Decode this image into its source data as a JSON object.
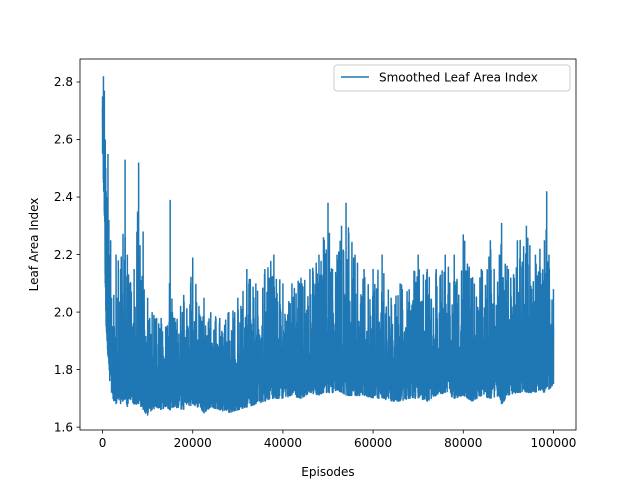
{
  "chart_data": {
    "type": "line",
    "title": "",
    "xlabel": "Episodes",
    "ylabel": "Leaf Area Index",
    "xlim": [
      -5000,
      105000
    ],
    "ylim": [
      1.59,
      2.88
    ],
    "xticks": [
      0,
      20000,
      40000,
      60000,
      80000,
      100000
    ],
    "xtick_labels": [
      "0",
      "20000",
      "40000",
      "60000",
      "80000",
      "100000"
    ],
    "yticks": [
      1.6,
      1.8,
      2.0,
      2.2,
      2.4,
      2.6,
      2.8
    ],
    "ytick_labels": [
      "1.6",
      "1.8",
      "2.0",
      "2.2",
      "2.4",
      "2.6",
      "2.8"
    ],
    "grid": false,
    "legend_position": "upper right",
    "series": [
      {
        "name": "Smoothed Leaf Area Index",
        "color": "#1f77b4",
        "x": [
          0,
          200,
          400,
          600,
          800,
          1000,
          1200,
          1400,
          1600,
          1800,
          2000,
          2500,
          3000,
          3500,
          4000,
          5000,
          5500,
          6000,
          7000,
          8000,
          8500,
          9000,
          10000,
          11000,
          12000,
          13000,
          14000,
          15000,
          15500,
          16000,
          18000,
          20000,
          22000,
          22500,
          24000,
          26000,
          28000,
          30000,
          32000,
          34000,
          36000,
          38000,
          40000,
          42000,
          44000,
          46000,
          48000,
          49000,
          50000,
          51000,
          52000,
          53000,
          54000,
          56000,
          58000,
          60000,
          62000,
          64000,
          66000,
          68000,
          70000,
          72000,
          74000,
          76000,
          78000,
          80000,
          82000,
          84000,
          86000,
          88000,
          88500,
          90000,
          92000,
          94000,
          96000,
          97000,
          98000,
          98500,
          99000,
          100000
        ],
        "upper": [
          2.75,
          2.82,
          2.77,
          2.6,
          2.42,
          2.4,
          2.55,
          2.32,
          2.2,
          2.25,
          2.05,
          2.06,
          2.2,
          2.18,
          2.15,
          2.53,
          2.2,
          2.1,
          2.15,
          2.52,
          2.1,
          2.28,
          2.05,
          2.0,
          1.98,
          1.98,
          1.95,
          2.39,
          2.0,
          1.98,
          2.06,
          2.19,
          1.97,
          2.05,
          2.0,
          1.98,
          2.0,
          2.05,
          2.15,
          2.1,
          2.15,
          2.2,
          2.1,
          2.1,
          2.12,
          2.15,
          2.2,
          2.26,
          2.38,
          2.15,
          2.2,
          2.3,
          2.38,
          2.2,
          2.15,
          2.15,
          2.2,
          2.05,
          2.1,
          2.08,
          2.2,
          2.15,
          2.15,
          2.2,
          2.2,
          2.27,
          2.12,
          2.15,
          2.25,
          2.2,
          2.31,
          2.15,
          2.25,
          2.3,
          2.2,
          2.22,
          2.25,
          2.42,
          2.2,
          2.08
        ],
        "lower": [
          2.55,
          2.45,
          2.35,
          2.1,
          1.95,
          1.9,
          1.85,
          1.82,
          1.76,
          1.78,
          1.72,
          1.69,
          1.68,
          1.7,
          1.68,
          1.7,
          1.67,
          1.7,
          1.68,
          1.68,
          1.67,
          1.66,
          1.64,
          1.66,
          1.67,
          1.66,
          1.67,
          1.66,
          1.67,
          1.67,
          1.66,
          1.68,
          1.66,
          1.65,
          1.67,
          1.66,
          1.65,
          1.66,
          1.67,
          1.68,
          1.69,
          1.7,
          1.7,
          1.71,
          1.7,
          1.72,
          1.71,
          1.72,
          1.72,
          1.72,
          1.73,
          1.72,
          1.71,
          1.71,
          1.71,
          1.7,
          1.7,
          1.69,
          1.69,
          1.7,
          1.7,
          1.69,
          1.71,
          1.72,
          1.7,
          1.71,
          1.69,
          1.71,
          1.7,
          1.71,
          1.68,
          1.71,
          1.72,
          1.72,
          1.72,
          1.73,
          1.72,
          1.74,
          1.73,
          1.75
        ]
      }
    ]
  }
}
